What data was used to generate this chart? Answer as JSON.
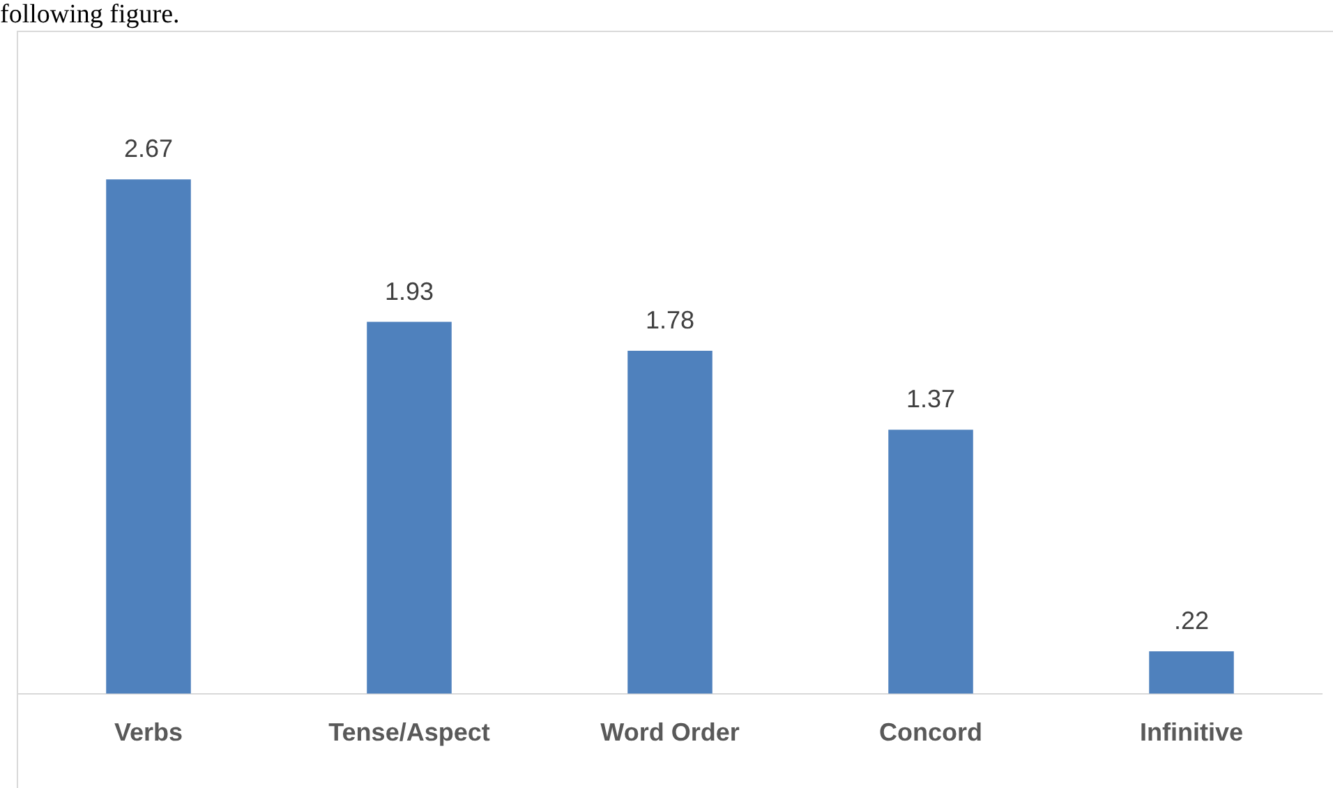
{
  "chart_data": {
    "type": "bar",
    "categories": [
      "Verbs",
      "Tense/Aspect",
      "Word Order",
      "Concord",
      "Infinitive"
    ],
    "values": [
      2.67,
      1.93,
      1.78,
      1.37,
      0.22
    ],
    "color": "#4f81bd",
    "value_labels": [
      "2.67",
      "1.93",
      "1.78",
      "1.37",
      ".22"
    ],
    "annotations": [
      "following figure."
    ],
    "grid": false,
    "legend": false
  }
}
